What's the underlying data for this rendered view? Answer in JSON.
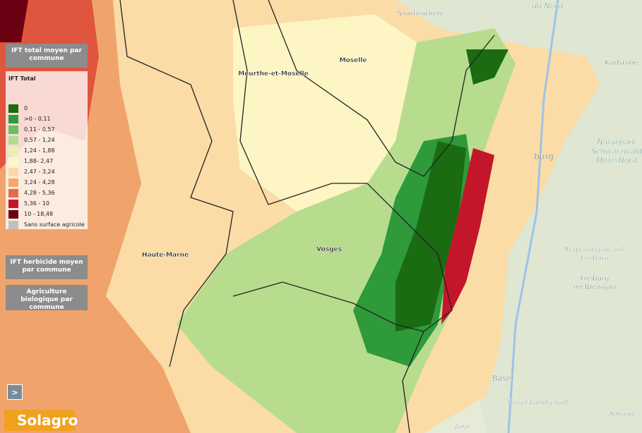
{
  "panels": {
    "ift_total": {
      "title": "IFT total moyen par commune"
    },
    "ift_herbicide": {
      "title": "IFT herbicide moyen par commune"
    },
    "bio": {
      "title": "Agriculture biologique par commune"
    }
  },
  "legend": {
    "title": "IFT Total",
    "items": [
      {
        "label": "0",
        "color": "#1a6b12"
      },
      {
        "label": ">0 - 0,11",
        "color": "#2e9a3a"
      },
      {
        "label": "0,11 - 0,57",
        "color": "#6cbf5a"
      },
      {
        "label": "0,57 - 1,24",
        "color": "#b5dc8c"
      },
      {
        "label": "1,24 - 1,88",
        "color": "#e6f2b4"
      },
      {
        "label": "1,88- 2,47",
        "color": "#fdf8c4"
      },
      {
        "label": "2,47 - 3,24",
        "color": "#fbd9a0"
      },
      {
        "label": "3,24 - 4,28",
        "color": "#f5a96a"
      },
      {
        "label": "4,28 - 5,36",
        "color": "#e8684a"
      },
      {
        "label": "5,36 - 10",
        "color": "#c4162a"
      },
      {
        "label": "10 - 18,48",
        "color": "#6b0012"
      },
      {
        "label": "Sans surface agricole",
        "color": "#c0c0c0"
      }
    ]
  },
  "departments": [
    "Meurthe-et-Moselle",
    "Moselle",
    "Haute-Marne",
    "Vosges"
  ],
  "basemap": {
    "places": [
      {
        "lines": [
          "Saarbrücken"
        ]
      },
      {
        "lines": [
          "du Nord"
        ]
      },
      {
        "lines": [
          "Karlsruhe"
        ]
      },
      {
        "lines": [
          "Naturpark",
          "Schwarzwald",
          "Mitte/Nord"
        ]
      },
      {
        "lines": [
          "burg"
        ]
      },
      {
        "lines": [
          "Regierungsbezirk",
          "Freiburg"
        ]
      },
      {
        "lines": [
          "Freiburg",
          "im Breisgau"
        ]
      },
      {
        "lines": [
          "Basel"
        ]
      },
      {
        "lines": [
          "Basel-Landschaft"
        ]
      },
      {
        "lines": [
          "Aargau"
        ]
      },
      {
        "lines": [
          "Jura"
        ]
      }
    ]
  },
  "controls": {
    "toggle": ">",
    "logo": "Solagro"
  }
}
